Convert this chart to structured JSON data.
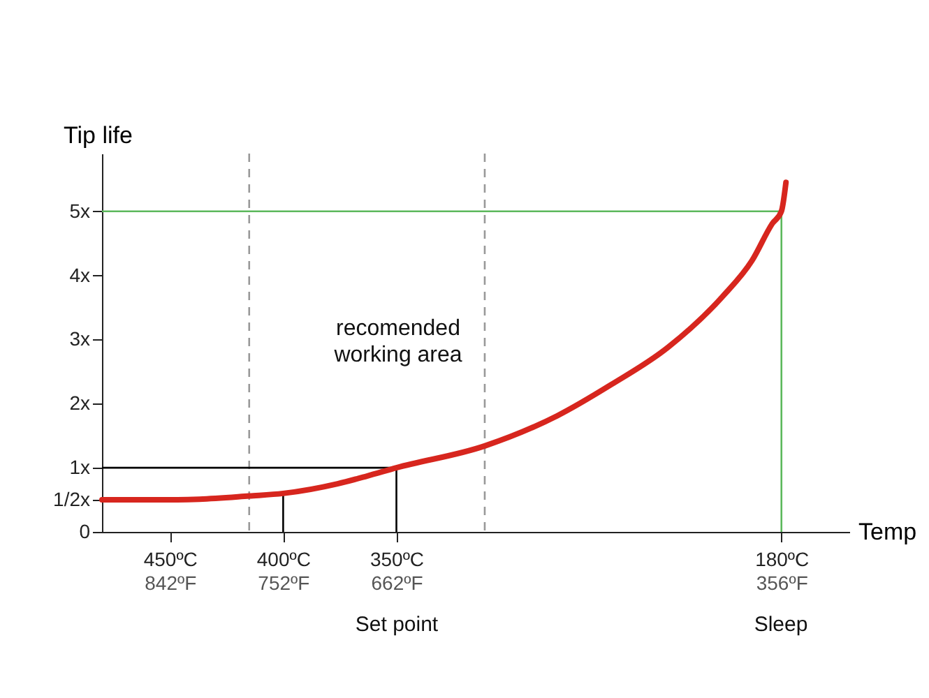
{
  "chart_data": {
    "type": "line",
    "ylabel": "Tip life",
    "xlabel": "Temp",
    "xlim": [
      480,
      150
    ],
    "ylim": [
      0,
      5.9
    ],
    "xticks": [
      {
        "value": 450,
        "label": "450ºC"
      },
      {
        "value": 400,
        "label": "400ºC"
      },
      {
        "value": 350,
        "label": "350ºC"
      },
      {
        "value": 180,
        "label": "180ºC"
      }
    ],
    "x2lim": [
      896,
      302
    ],
    "x2ticks": [
      {
        "value": 842,
        "label": "842ºF"
      },
      {
        "value": 752,
        "label": "752ºF"
      },
      {
        "value": 662,
        "label": "662ºF"
      },
      {
        "value": 356,
        "label": "356ºF"
      }
    ],
    "yticks": [
      0,
      {
        "value": 0.5,
        "label": "1/2x"
      },
      {
        "value": 1,
        "label": "1x"
      },
      {
        "value": 2,
        "label": "2x"
      },
      {
        "value": 3,
        "label": "3x"
      },
      {
        "value": 4,
        "label": "4x"
      },
      {
        "value": 5,
        "label": "5x"
      }
    ],
    "series": [
      {
        "color": "#000000",
        "x": [
          480,
          350,
          350
        ],
        "values": [
          1,
          1,
          0
        ]
      },
      {
        "color": "#000000",
        "x": [
          400,
          400
        ],
        "values": [
          0.6,
          0
        ]
      },
      {
        "color": "#5cb85c",
        "x": [
          480,
          180,
          180
        ],
        "values": [
          5,
          5,
          0
        ]
      },
      {
        "color": "#d7261e",
        "x": [
          480,
          450,
          437,
          415,
          400,
          376,
          363,
          350,
          311,
          279,
          255,
          230,
          206,
          193,
          184,
          180,
          178
        ],
        "values": [
          0.5,
          0.5,
          0.51,
          0.56,
          0.6,
          0.75,
          0.87,
          1.0,
          1.34,
          1.81,
          2.3,
          2.88,
          3.67,
          4.23,
          4.81,
          5.0,
          5.45
        ]
      }
    ],
    "ref_lines": [
      {
        "axis": "x",
        "value": 415,
        "color": "#999999",
        "line_style": "dashed"
      },
      {
        "axis": "x",
        "value": 311,
        "color": "#999999",
        "line_style": "dashed"
      }
    ],
    "annotations": [
      "recomended\nworking area",
      "Set point",
      "Sleep"
    ],
    "marker": "none",
    "line_style": "solid"
  }
}
